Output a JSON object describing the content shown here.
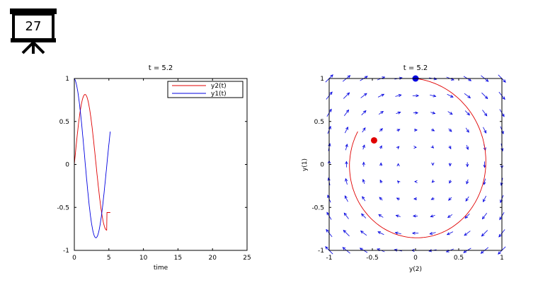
{
  "slide": {
    "number": "27",
    "icon": "presentation-board-icon"
  },
  "colors": {
    "red": "#e00000",
    "blue": "#0000e0",
    "axis": "#000000"
  },
  "chart_data": [
    {
      "type": "line",
      "title": "t = 5.2",
      "xlabel": "time",
      "ylabel": "",
      "xlim": [
        0,
        25
      ],
      "ylim": [
        -1,
        1
      ],
      "xticks": [
        0,
        5,
        10,
        15,
        20,
        25
      ],
      "yticks": [
        -1,
        -0.5,
        0,
        0.5,
        1
      ],
      "legend": "top-right",
      "series": [
        {
          "name": "y2(t)",
          "color": "#e00000",
          "x_range": [
            0,
            5.2
          ],
          "form": "sin",
          "values_at": {
            "t": [
              0,
              1.5,
              3.1,
              4.7,
              5.2
            ],
            "y": [
              0,
              0.83,
              0.0,
              -0.56,
              -0.48
            ]
          }
        },
        {
          "name": "y1(t)",
          "color": "#0000e0",
          "x_range": [
            0,
            5.2
          ],
          "form": "cos",
          "values_at": {
            "t": [
              0,
              1.5,
              2.9,
              4.5,
              5.2
            ],
            "y": [
              1,
              0.1,
              -0.71,
              0.0,
              0.28
            ]
          }
        }
      ]
    },
    {
      "type": "line",
      "title": "t = 5.2",
      "xlabel": "y(2)",
      "ylabel": "y(1)",
      "xlim": [
        -1,
        1
      ],
      "ylim": [
        -1,
        1
      ],
      "xticks": [
        -1,
        -0.5,
        0,
        0.5,
        1
      ],
      "yticks": [
        -1,
        -0.5,
        0,
        0.5,
        1
      ],
      "quiver": {
        "grid": 11,
        "color": "#0000e0"
      },
      "trajectory": {
        "color": "#e00000",
        "t_range": [
          0,
          5.2
        ]
      },
      "start_point": {
        "x": 0,
        "y": 1,
        "color": "#0000e0"
      },
      "current_point": {
        "x": -0.48,
        "y": 0.28,
        "color": "#e00000"
      }
    }
  ]
}
